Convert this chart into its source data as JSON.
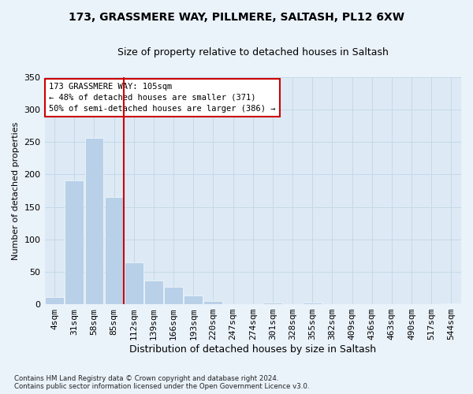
{
  "title_line1": "173, GRASSMERE WAY, PILLMERE, SALTASH, PL12 6XW",
  "title_line2": "Size of property relative to detached houses in Saltash",
  "xlabel": "Distribution of detached houses by size in Saltash",
  "ylabel": "Number of detached properties",
  "footnote": "Contains HM Land Registry data © Crown copyright and database right 2024.\nContains public sector information licensed under the Open Government Licence v3.0.",
  "bar_labels": [
    "4sqm",
    "31sqm",
    "58sqm",
    "85sqm",
    "112sqm",
    "139sqm",
    "166sqm",
    "193sqm",
    "220sqm",
    "247sqm",
    "274sqm",
    "301sqm",
    "328sqm",
    "355sqm",
    "382sqm",
    "409sqm",
    "436sqm",
    "463sqm",
    "490sqm",
    "517sqm",
    "544sqm"
  ],
  "bar_values": [
    11,
    191,
    256,
    165,
    65,
    36,
    27,
    13,
    5,
    0,
    0,
    3,
    0,
    2,
    0,
    0,
    0,
    0,
    0,
    0,
    1
  ],
  "bar_color": "#b8d0e8",
  "vline_x": 3.5,
  "vline_color": "#cc0000",
  "annotation_text": "173 GRASSMERE WAY: 105sqm\n← 48% of detached houses are smaller (371)\n50% of semi-detached houses are larger (386) →",
  "annotation_box_facecolor": "#ffffff",
  "annotation_box_edgecolor": "#cc0000",
  "grid_color": "#c5d8e8",
  "plot_bg_color": "#ddeaf5",
  "fig_bg_color": "#eaf2fa",
  "ylim": [
    0,
    350
  ],
  "yticks": [
    0,
    50,
    100,
    150,
    200,
    250,
    300,
    350
  ],
  "title1_fontsize": 10,
  "title2_fontsize": 9,
  "ylabel_fontsize": 8,
  "xlabel_fontsize": 9,
  "tick_fontsize": 8,
  "annot_fontsize": 7.5
}
